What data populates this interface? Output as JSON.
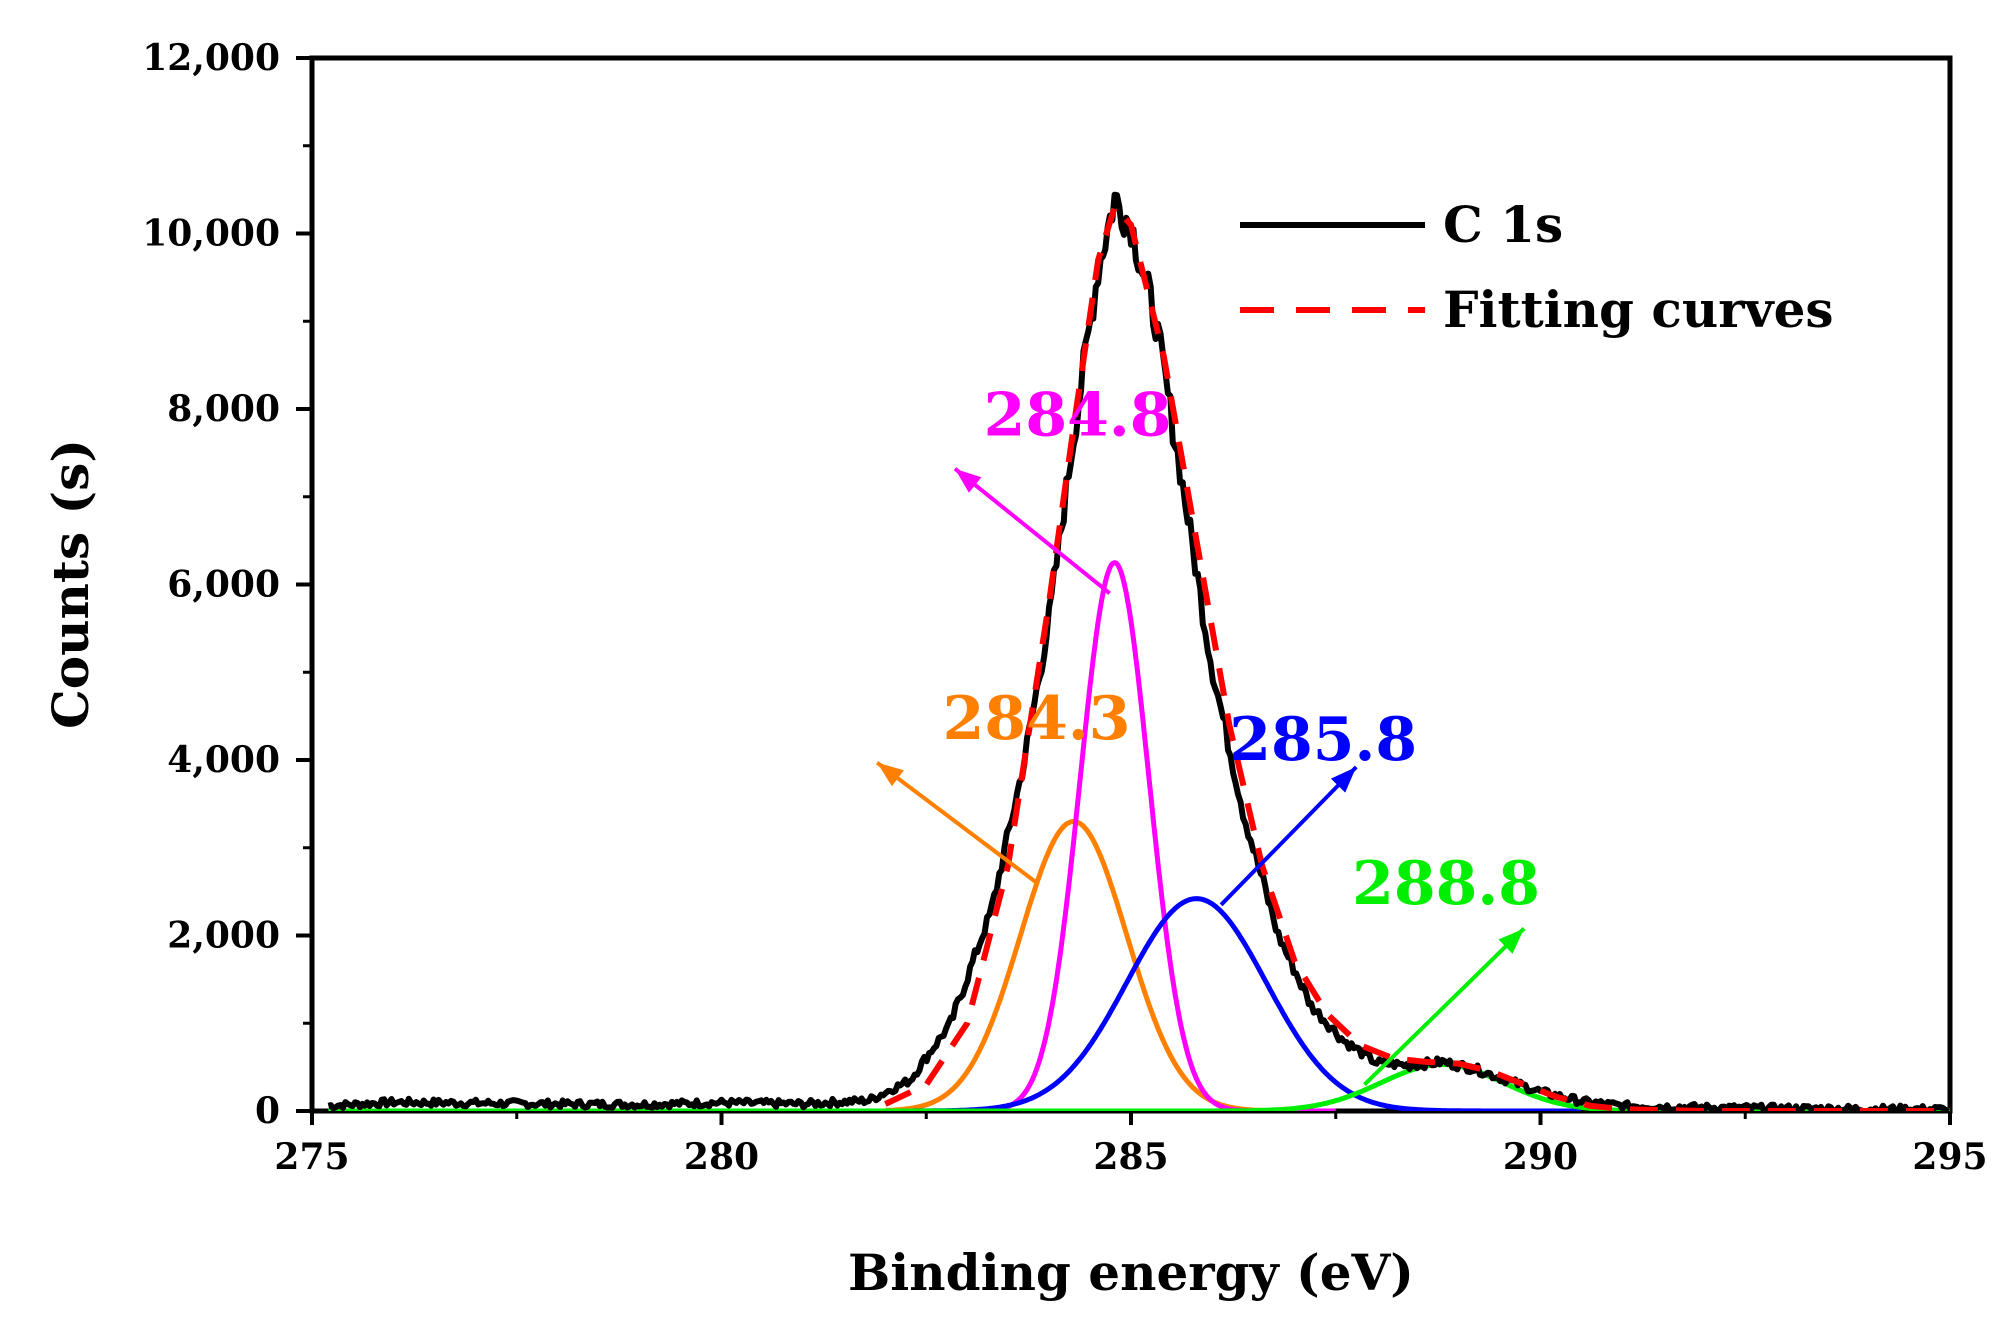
{
  "chart_data": {
    "type": "line",
    "title": "",
    "xlabel": "Binding energy (eV)",
    "ylabel": "Counts (s)",
    "xlim": [
      275,
      295
    ],
    "ylim": [
      0,
      12000
    ],
    "x_ticks": [
      275,
      280,
      285,
      290,
      295
    ],
    "x_tick_labels": [
      "275",
      "280",
      "285",
      "290",
      "295"
    ],
    "y_ticks": [
      0,
      2000,
      4000,
      6000,
      8000,
      10000,
      12000
    ],
    "y_tick_labels": [
      "0",
      "2,000",
      "4,000",
      "6,000",
      "8,000",
      "10,000",
      "12,000"
    ],
    "grid": false,
    "legend_position": "top-right",
    "legend": [
      {
        "label": "C 1s",
        "color": "#000000",
        "style": "solid"
      },
      {
        "label": "Fitting curves",
        "color": "#ff0000",
        "style": "dashed"
      }
    ],
    "experimental": {
      "name": "C 1s",
      "color": "#000000",
      "x": [
        275.2,
        276,
        277,
        278,
        279,
        280,
        281,
        281.8,
        282.3,
        282.8,
        283.3,
        283.7,
        284.0,
        284.3,
        284.6,
        284.8,
        285.0,
        285.3,
        285.6,
        286.0,
        286.4,
        286.8,
        287.2,
        287.6,
        288.0,
        288.4,
        288.8,
        289.2,
        289.6,
        290.0,
        290.5,
        291,
        292,
        293,
        294,
        295
      ],
      "y": [
        60,
        100,
        90,
        80,
        75,
        95,
        80,
        120,
        350,
        1000,
        2300,
        4000,
        5600,
        7700,
        9600,
        10400,
        10100,
        9000,
        7300,
        5000,
        3300,
        2000,
        1200,
        800,
        550,
        520,
        560,
        480,
        350,
        220,
        110,
        60,
        40,
        30,
        25,
        20
      ]
    },
    "series": [
      {
        "name": "Fitting curves",
        "color": "#ff0000",
        "style": "dashed",
        "x": [
          282.0,
          282.5,
          283.0,
          283.5,
          284.0,
          284.3,
          284.6,
          284.8,
          285.0,
          285.4,
          285.8,
          286.2,
          286.6,
          287.0,
          287.4,
          287.8,
          288.2,
          288.6,
          289.0,
          289.4,
          289.8,
          290.2,
          290.6,
          291,
          292,
          293,
          294,
          295
        ],
        "y": [
          80,
          300,
          1000,
          2800,
          5800,
          7800,
          9700,
          10300,
          10100,
          8600,
          6500,
          4400,
          2800,
          1700,
          1100,
          750,
          600,
          560,
          540,
          450,
          300,
          160,
          60,
          20,
          0,
          0,
          0,
          0
        ]
      },
      {
        "name": "284.3 component",
        "color": "#ff8000",
        "center": 284.3,
        "amplitude": 3300,
        "sigma": 0.65,
        "x_range": [
          282.0,
          287.0
        ]
      },
      {
        "name": "284.8 component",
        "color": "#ff00ff",
        "center": 284.8,
        "amplitude": 6250,
        "sigma": 0.42,
        "x_range": [
          282.5,
          287.5
        ]
      },
      {
        "name": "285.8 component",
        "color": "#0000ff",
        "center": 285.8,
        "amplitude": 2420,
        "sigma": 0.85,
        "x_range": [
          282.0,
          290.5
        ]
      },
      {
        "name": "288.8 component",
        "color": "#00ee00",
        "center": 288.8,
        "amplitude": 530,
        "sigma": 0.75,
        "x_range": [
          275.2,
          295.0
        ]
      }
    ],
    "annotations": [
      {
        "text": "284.8",
        "color": "#ff00ff",
        "text_x": 283.2,
        "text_y": 7700,
        "arrow_from": [
          284.74,
          5900
        ],
        "arrow_to": [
          282.85,
          7320
        ]
      },
      {
        "text": "284.3",
        "color": "#ff8000",
        "text_x": 282.7,
        "text_y": 4240,
        "arrow_from": [
          283.85,
          2600
        ],
        "arrow_to": [
          281.9,
          3970
        ]
      },
      {
        "text": "285.8",
        "color": "#0000ff",
        "text_x": 286.2,
        "text_y": 4000,
        "arrow_from": [
          286.1,
          2350
        ],
        "arrow_to": [
          287.75,
          3920
        ]
      },
      {
        "text": "288.8",
        "color": "#00ee00",
        "text_x": 287.7,
        "text_y": 2360,
        "arrow_from": [
          287.85,
          300
        ],
        "arrow_to": [
          289.8,
          2080
        ]
      }
    ]
  }
}
